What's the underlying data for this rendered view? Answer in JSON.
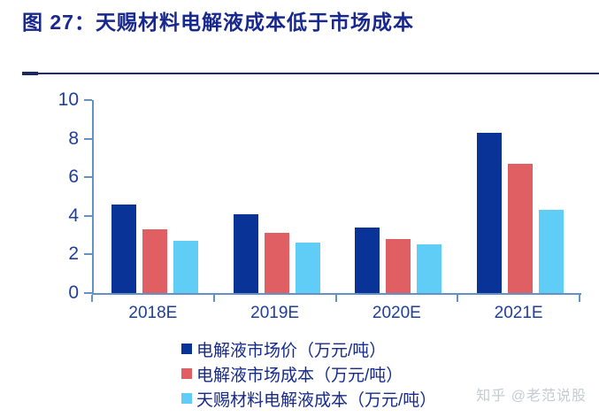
{
  "header": {
    "title": "图 27：天赐材料电解液成本低于市场成本"
  },
  "watermark": {
    "text": "知乎 @老范说股"
  },
  "colors": {
    "title": "#18288c",
    "divider": "#1a2a5e",
    "axis_line": "#6592c6",
    "tick_label": "#1e3f9d",
    "legend_text": "#152a8c",
    "watermark": "#c6cbd0",
    "background": "#ffffff"
  },
  "chart_data": {
    "type": "bar",
    "title": "",
    "xlabel": "",
    "ylabel": "",
    "categories": [
      "2018E",
      "2019E",
      "2020E",
      "2021E"
    ],
    "series": [
      {
        "name": "电解液市场价（万元/吨）",
        "color": "#0a3397",
        "values": [
          4.6,
          4.1,
          3.4,
          8.3
        ]
      },
      {
        "name": "电解液市场成本（万元/吨）",
        "color": "#e05f63",
        "values": [
          3.3,
          3.1,
          2.8,
          6.7
        ]
      },
      {
        "name": "天赐材料电解液成本（万元/吨）",
        "color": "#5fcdf5",
        "values": [
          2.7,
          2.6,
          2.5,
          4.3
        ]
      }
    ],
    "ylim": [
      0,
      10
    ],
    "yticks": [
      0,
      2,
      4,
      6,
      8,
      10
    ],
    "grid": false,
    "legend_position": "bottom"
  }
}
